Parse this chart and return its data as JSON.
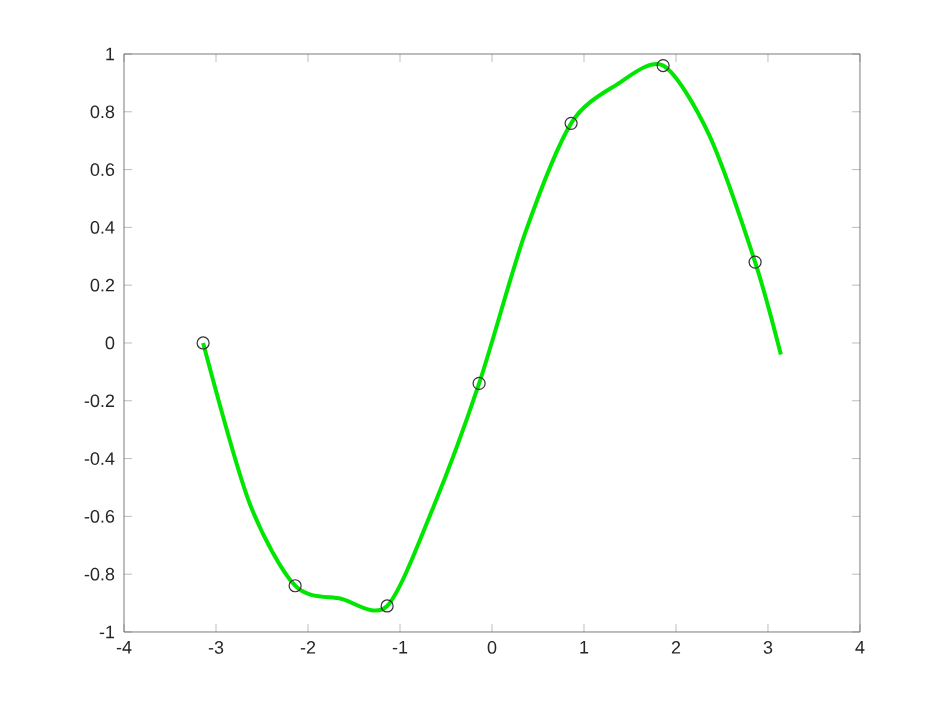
{
  "chart_data": {
    "type": "line",
    "xlim": [
      -4,
      4
    ],
    "xticks": [
      -4,
      -3,
      -2,
      -1,
      0,
      1,
      2,
      3,
      4
    ],
    "ylim": [
      -1,
      1
    ],
    "yticks": [
      -1,
      -0.8,
      -0.6,
      -0.4,
      -0.2,
      0,
      0.2,
      0.4,
      0.6,
      0.8,
      1
    ],
    "grid": false,
    "series": [
      {
        "color": "#00e600",
        "marker": "none",
        "line_style": "solid",
        "x": [
          -3.14,
          -2.64,
          -2.14,
          -1.64,
          -1.14,
          -0.64,
          -0.14,
          0.36,
          0.86,
          1.36,
          1.86,
          2.36,
          2.86,
          3.14
        ],
        "values": [
          0,
          -0.55,
          -0.84,
          -0.885,
          -0.91,
          -0.57,
          -0.14,
          0.38,
          0.76,
          0.895,
          0.96,
          0.72,
          0.28,
          -0.04
        ]
      },
      {
        "type": "scatter",
        "color": "#333333",
        "marker": "circle",
        "x": [
          -3.14,
          -2.14,
          -1.14,
          -0.14,
          0.86,
          1.86,
          2.86
        ],
        "values": [
          0,
          -0.84,
          -0.91,
          -0.14,
          0.76,
          0.96,
          0.28
        ]
      }
    ]
  }
}
